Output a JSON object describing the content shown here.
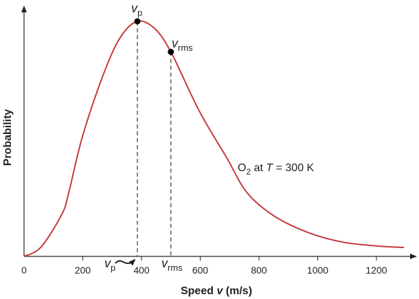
{
  "chart_data": {
    "type": "line",
    "title": "",
    "xlabel": "Speed v (m/s)",
    "xlabel_parts": {
      "pre": "Speed ",
      "var": "v",
      "post": " (m/s)"
    },
    "ylabel": "Probability",
    "xlim": [
      0,
      1320
    ],
    "ylim": [
      0,
      1.06
    ],
    "xticks": [
      0,
      200,
      400,
      600,
      800,
      1000,
      1200
    ],
    "grid": false,
    "line_color": "#c8383a",
    "series": [
      {
        "x": [
          0,
          58,
          129,
          152,
          199,
          269,
          327,
          386,
          444,
          500,
          596,
          690,
          760,
          854,
          971,
          1088,
          1205,
          1294
        ],
        "y": [
          0,
          0.04,
          0.18,
          0.27,
          0.51,
          0.77,
          0.93,
          1.0,
          0.97,
          0.87,
          0.62,
          0.42,
          0.27,
          0.17,
          0.1,
          0.06,
          0.044,
          0.038
        ]
      }
    ],
    "markers": [
      {
        "name": "vp",
        "label_main": "v",
        "label_sub": "p",
        "x": 386,
        "y": 1.0
      },
      {
        "name": "vrms",
        "label_main": "v",
        "label_sub": "rms",
        "x": 500,
        "y": 0.87
      }
    ],
    "annotation": {
      "pre": "O",
      "sub": "2",
      "mid": " at ",
      "var": "T",
      "post": " = 300 K"
    }
  }
}
